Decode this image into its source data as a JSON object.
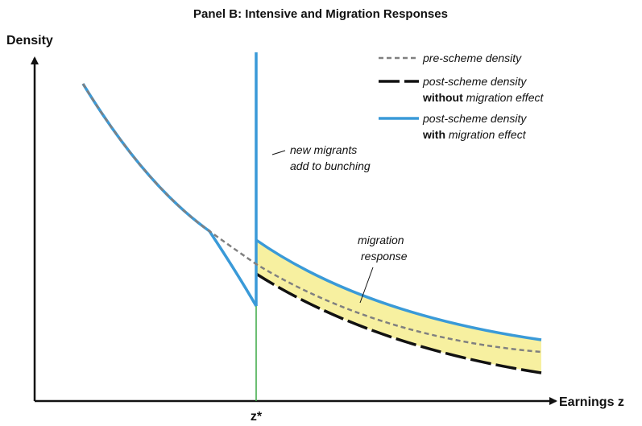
{
  "title": "Panel B: Intensive and Migration Responses",
  "axes": {
    "y_label": "Density",
    "x_label": "Earnings z",
    "threshold": "z*"
  },
  "legend": [
    {
      "label": "pre-scheme density"
    },
    {
      "label": "post-scheme density",
      "bold": "without",
      "italic": "migration effect"
    },
    {
      "label": "post-scheme density",
      "bold": "with",
      "italic": "migration effect"
    }
  ],
  "annotations": [
    {
      "lines": [
        "new migrants",
        "add to bunching"
      ]
    },
    {
      "lines": [
        "migration",
        "response"
      ]
    }
  ]
}
